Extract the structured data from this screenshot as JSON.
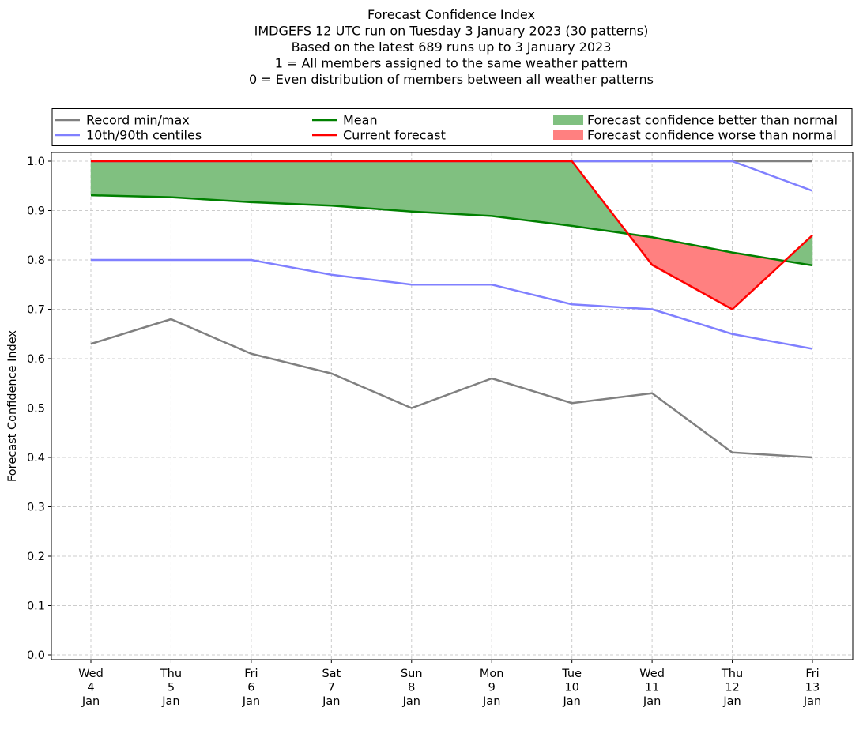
{
  "chart_data": {
    "type": "line",
    "title_lines": [
      "Forecast Confidence Index",
      "IMDGEFS 12 UTC run on Tuesday 3 January 2023 (30 patterns)",
      "Based on the latest 689 runs up to 3 January 2023",
      "1 = All members assigned to the same weather pattern",
      "0 = Even distribution of members between all weather patterns"
    ],
    "ylabel": "Forecast Confidence Index",
    "ylim": [
      0,
      1.0
    ],
    "yticks": [
      "0.0",
      "0.1",
      "0.2",
      "0.3",
      "0.4",
      "0.5",
      "0.6",
      "0.7",
      "0.8",
      "0.9",
      "1.0"
    ],
    "categories": [
      [
        "Wed",
        "4",
        "Jan"
      ],
      [
        "Thu",
        "5",
        "Jan"
      ],
      [
        "Fri",
        "6",
        "Jan"
      ],
      [
        "Sat",
        "7",
        "Jan"
      ],
      [
        "Sun",
        "8",
        "Jan"
      ],
      [
        "Mon",
        "9",
        "Jan"
      ],
      [
        "Tue",
        "10",
        "Jan"
      ],
      [
        "Wed",
        "11",
        "Jan"
      ],
      [
        "Thu",
        "12",
        "Jan"
      ],
      [
        "Fri",
        "13",
        "Jan"
      ]
    ],
    "series": {
      "record_min": [
        0.63,
        0.68,
        0.61,
        0.57,
        0.5,
        0.56,
        0.51,
        0.53,
        0.41,
        0.4
      ],
      "record_max": [
        1.0,
        1.0,
        1.0,
        1.0,
        1.0,
        1.0,
        1.0,
        1.0,
        1.0,
        1.0
      ],
      "p10": [
        0.8,
        0.8,
        0.8,
        0.77,
        0.75,
        0.75,
        0.71,
        0.7,
        0.65,
        0.62
      ],
      "p90": [
        1.0,
        1.0,
        1.0,
        1.0,
        1.0,
        1.0,
        1.0,
        1.0,
        1.0,
        0.94
      ],
      "mean": [
        0.931,
        0.927,
        0.917,
        0.91,
        0.898,
        0.889,
        0.869,
        0.846,
        0.815,
        0.789
      ],
      "current": [
        1.0,
        1.0,
        1.0,
        1.0,
        1.0,
        1.0,
        1.0,
        0.79,
        0.7,
        0.85
      ]
    },
    "legend": [
      {
        "label": "Record min/max",
        "kind": "line",
        "color": "#808080"
      },
      {
        "label": "Mean",
        "kind": "line",
        "color": "#008000"
      },
      {
        "label": "Forecast confidence better than normal",
        "kind": "patch",
        "color": "#80c080"
      },
      {
        "label": "10th/90th centiles",
        "kind": "line",
        "color": "#8080ff"
      },
      {
        "label": "Current forecast",
        "kind": "line",
        "color": "#ff0000"
      },
      {
        "label": "Forecast confidence worse than normal",
        "kind": "patch",
        "color": "#ff8080"
      }
    ],
    "legend_position": "top",
    "grid": true,
    "colors": {
      "record": "#808080",
      "centiles": "#8080ff",
      "mean": "#008000",
      "current": "#ff0000",
      "better": "#80c080",
      "worse": "#ff8080",
      "grid": "#cccccc"
    }
  }
}
